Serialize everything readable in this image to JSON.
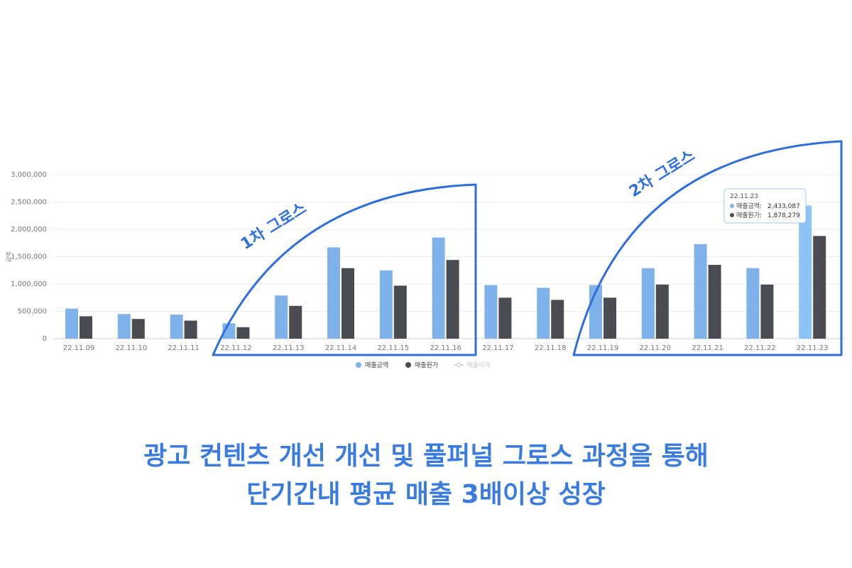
{
  "chart_data": {
    "type": "bar",
    "categories": [
      "22.11.09",
      "22.11.10",
      "22.11.11",
      "22.11.12",
      "22.11.13",
      "22.11.14",
      "22.11.15",
      "22.11.16",
      "22.11.17",
      "22.11.18",
      "22.11.19",
      "22.11.20",
      "22.11.21",
      "22.11.22",
      "22.11.23"
    ],
    "series": [
      {
        "name": "매출금액",
        "color": "#7fb2ea",
        "values": [
          550000,
          450000,
          440000,
          280000,
          790000,
          1670000,
          1250000,
          1850000,
          980000,
          930000,
          980000,
          1290000,
          1730000,
          1290000,
          2433087
        ]
      },
      {
        "name": "매출원가",
        "color": "#4a4c52",
        "values": [
          410000,
          360000,
          330000,
          210000,
          600000,
          1290000,
          970000,
          1440000,
          750000,
          710000,
          750000,
          990000,
          1350000,
          990000,
          1878279
        ]
      }
    ],
    "legend_extra": "매출이익",
    "ylabel": "금액",
    "ylim": [
      0,
      3000000
    ],
    "yticks": [
      0,
      500000,
      1000000,
      1500000,
      2000000,
      2500000,
      3000000
    ],
    "ytick_labels": [
      "0",
      "500,000",
      "1,000,000",
      "1,500,000",
      "2,000,000",
      "2,500,000",
      "3,000,000"
    ],
    "grid": true,
    "legend_position": "bottom-center",
    "annotations": [
      "1차 그로스",
      "2차 그로스"
    ],
    "tooltip": {
      "title": "22.11.23",
      "line1_label": "매출금액:",
      "line1_value": "2,433,087",
      "line2_label": "매출원가:",
      "line2_value": "1,878,279"
    }
  },
  "headline": {
    "line1": "광고 컨텐츠 개선 개선 및 풀퍼널 그로스 과정을 통해",
    "line2": "단기간내 평균 매출 3배이상 성장"
  },
  "colors": {
    "accent": "#2f6fdb",
    "headline": "#3a7be0",
    "bar_sales": "#7fb2ea",
    "bar_sales_highlight": "#8cc4f5",
    "bar_cost": "#4a4c52"
  }
}
